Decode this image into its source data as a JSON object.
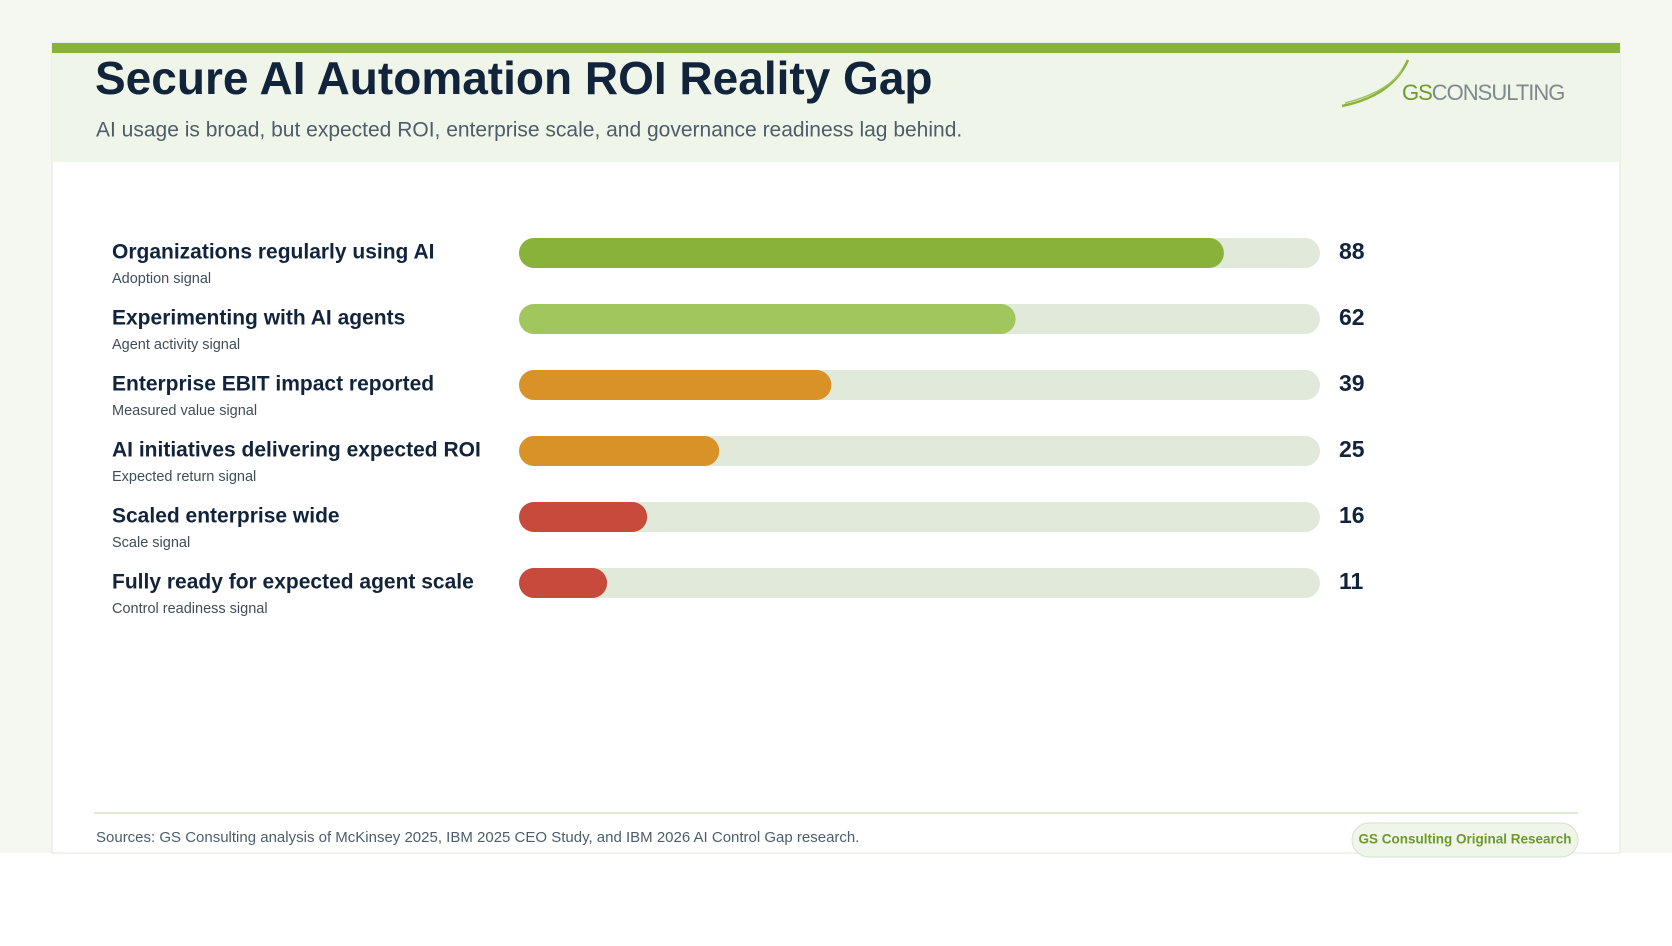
{
  "chart_data": {
    "type": "hbar",
    "title": "Secure AI Automation ROI Reality Gap",
    "subtitle": "AI usage is broad, but expected ROI, enterprise scale, and governance readiness lag behind.",
    "categories": [
      "Organizations regularly using AI",
      "Experimenting with AI agents",
      "Enterprise EBIT impact reported",
      "AI initiatives delivering expected ROI",
      "Scaled enterprise wide",
      "Fully ready for expected agent scale"
    ],
    "category_notes": [
      "Adoption signal",
      "Agent activity signal",
      "Measured value signal",
      "Expected return signal",
      "Scale signal",
      "Control readiness signal"
    ],
    "values": [
      88,
      62,
      39,
      25,
      16,
      11
    ],
    "colors": [
      "#89b23a",
      "#a1c65d",
      "#d99228",
      "#d99228",
      "#c84a3d",
      "#c84a3d"
    ],
    "track_color": "#e0e9da",
    "xlim": [
      0,
      100
    ]
  },
  "logo": {
    "primary": "GS",
    "secondary": "CONSULTING"
  },
  "footer": {
    "sources": "Sources: GS Consulting analysis of McKinsey 2025, IBM 2025 CEO Study, and IBM 2026 AI Control Gap research.",
    "badge": "GS Consulting Original Research"
  }
}
